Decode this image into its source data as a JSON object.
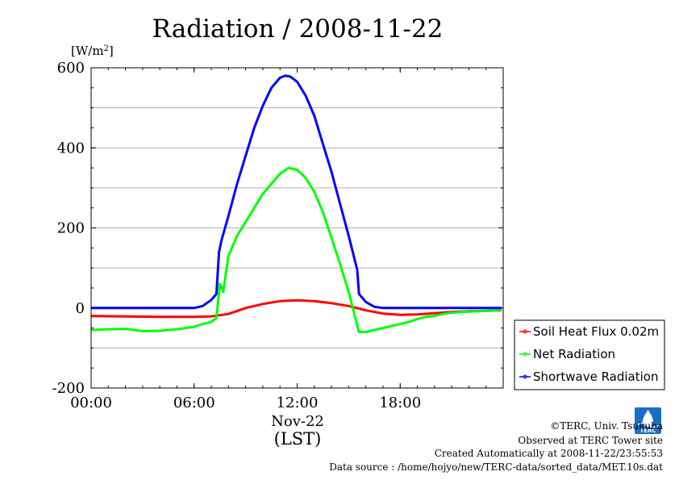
{
  "chart_data": {
    "type": "line",
    "title": "Radiation / 2008-11-22",
    "ylabel_unit": "[W/m",
    "ylabel_unit_sup": "2",
    "ylabel_unit_close": "]",
    "xlabel": "(LST)",
    "x_date_label": "Nov-22",
    "xlim": [
      0,
      24
    ],
    "ylim": [
      -200,
      600
    ],
    "x_ticks": [
      {
        "value": 0,
        "label": "00:00"
      },
      {
        "value": 6,
        "label": "06:00"
      },
      {
        "value": 12,
        "label": "12:00"
      },
      {
        "value": 18,
        "label": "18:00"
      }
    ],
    "y_ticks": [
      {
        "value": -200,
        "label": "-200"
      },
      {
        "value": 0,
        "label": "0"
      },
      {
        "value": 200,
        "label": "200"
      },
      {
        "value": 400,
        "label": "400"
      },
      {
        "value": 600,
        "label": "600"
      }
    ],
    "grid_y": [
      -100,
      100,
      200,
      300,
      400,
      500
    ],
    "legend_position": "right-bottom",
    "series": [
      {
        "name": "Soil Heat Flux 0.02m",
        "color": "#ff0000",
        "x": [
          0,
          2,
          4,
          6,
          7,
          8,
          9,
          10,
          11,
          12,
          13,
          14,
          15,
          16,
          17,
          18,
          19,
          20,
          21,
          22,
          23,
          23.9
        ],
        "y": [
          -20,
          -21,
          -22,
          -22,
          -21,
          -15,
          0,
          10,
          17,
          19,
          17,
          12,
          5,
          -6,
          -14,
          -17,
          -16,
          -13,
          -10,
          -8,
          -7,
          -6
        ]
      },
      {
        "name": "Net Radiation",
        "color": "#00ff00",
        "x": [
          0,
          1,
          2,
          3,
          4,
          5,
          6,
          6.5,
          7,
          7.3,
          7.5,
          7.7,
          8,
          8.5,
          9,
          9.5,
          10,
          10.5,
          11,
          11.5,
          12,
          12.5,
          13,
          13.5,
          14,
          14.5,
          15,
          15.3,
          15.6,
          16,
          16.5,
          17,
          17.5,
          18,
          18.5,
          19,
          19.5,
          20,
          20.5,
          21,
          21.5,
          22,
          22.5,
          23,
          23.9
        ],
        "y": [
          -55,
          -53,
          -52,
          -58,
          -57,
          -53,
          -47,
          -40,
          -35,
          -25,
          60,
          40,
          130,
          180,
          215,
          250,
          285,
          310,
          335,
          350,
          345,
          325,
          290,
          240,
          175,
          110,
          40,
          -10,
          -60,
          -60,
          -55,
          -50,
          -45,
          -40,
          -35,
          -28,
          -22,
          -20,
          -15,
          -12,
          -10,
          -9,
          -8,
          -7,
          -6
        ]
      },
      {
        "name": "Shortwave Radiation",
        "color": "#0000ff",
        "x": [
          0,
          2,
          4,
          6,
          6.5,
          7,
          7.3,
          7.45,
          7.6,
          8,
          8.5,
          9,
          9.5,
          10,
          10.5,
          11,
          11.3,
          11.6,
          12,
          12.5,
          13,
          13.5,
          14,
          14.5,
          15,
          15.5,
          15.6,
          16,
          16.5,
          17,
          18,
          20,
          22,
          23.9
        ],
        "y": [
          0,
          0,
          0,
          0,
          5,
          20,
          35,
          140,
          170,
          230,
          310,
          380,
          450,
          505,
          550,
          575,
          580,
          578,
          565,
          530,
          480,
          410,
          340,
          260,
          180,
          95,
          35,
          15,
          3,
          0,
          0,
          0,
          0,
          0
        ]
      }
    ]
  },
  "credits": {
    "copyright": "©TERC, Univ. Tsukuba",
    "site": "Observed at TERC Tower site",
    "created": "Created Automatically at 2008-11-22/23:55:53",
    "source": "Data source : /home/hojyo/new/TERC-data/sorted_data/MET.10s.dat",
    "logo_text": "TERC",
    "logo_color": "#1a6fc4"
  }
}
